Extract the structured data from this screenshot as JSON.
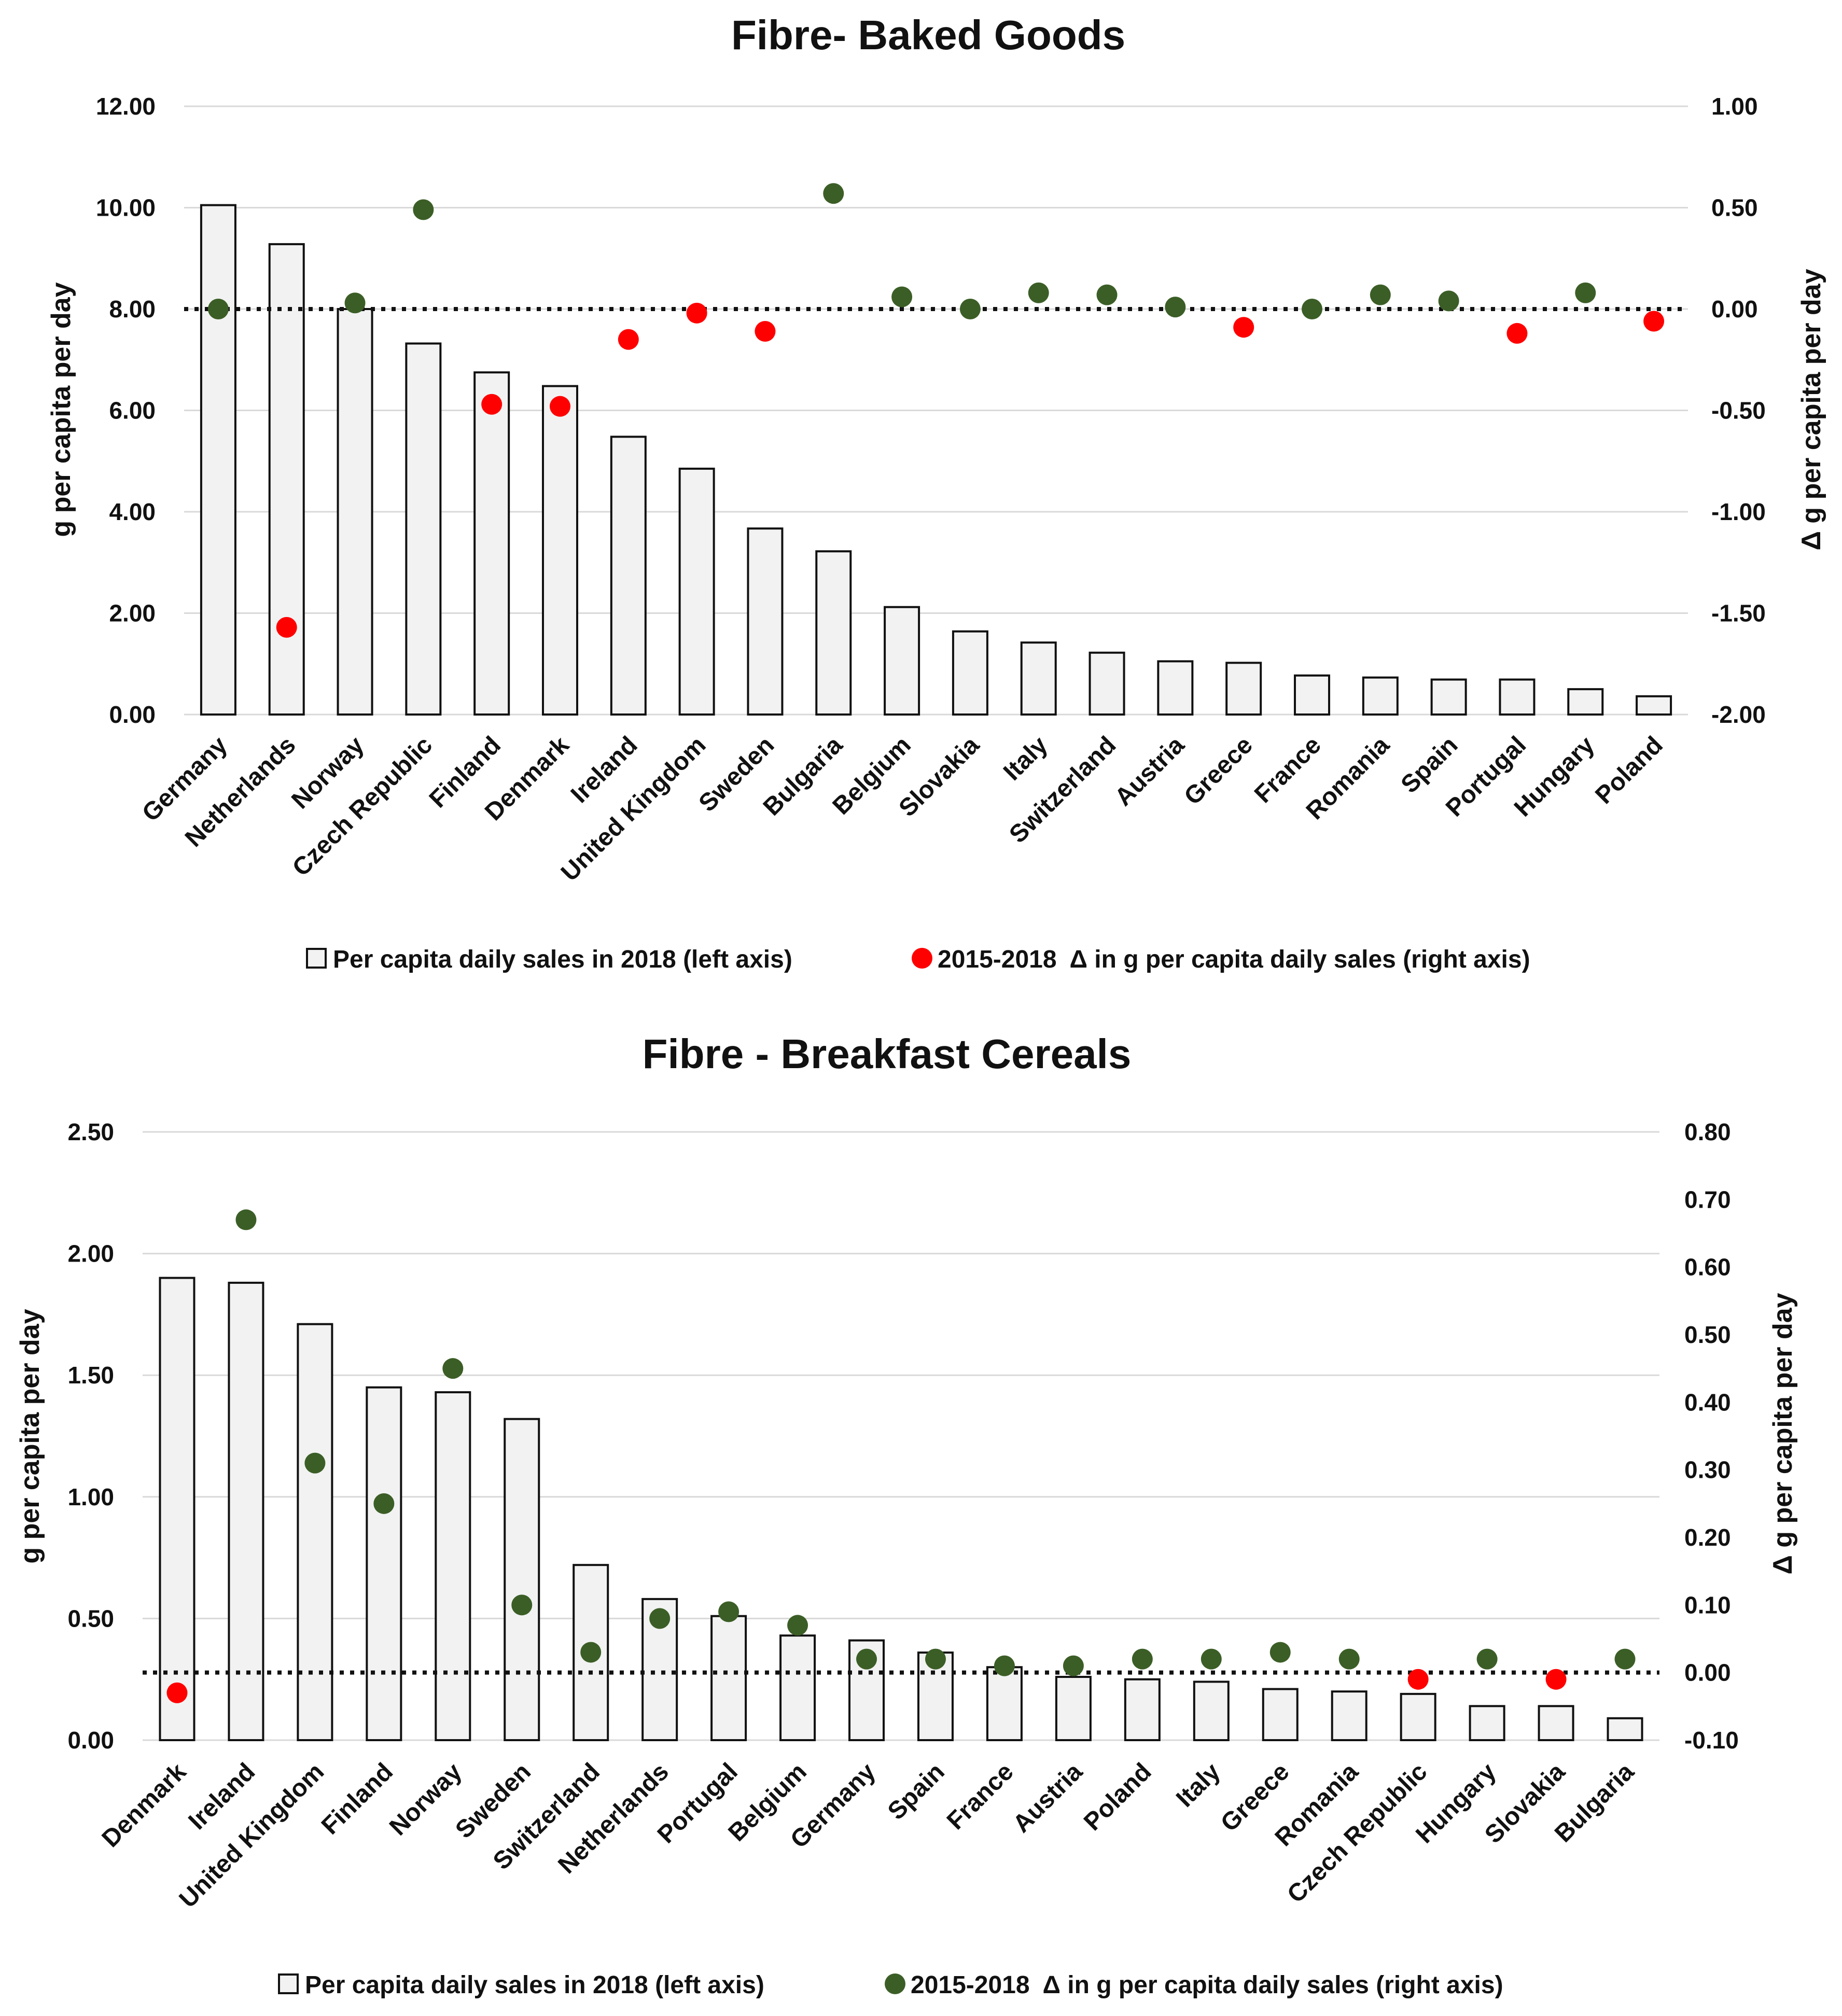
{
  "colors": {
    "increase": "#3b5e26",
    "decrease": "#ff0000",
    "bar_fill": "#f2f2f2",
    "bar_stroke": "#111111",
    "grid": "#d9d9d9"
  },
  "chart_data": [
    {
      "type": "bar",
      "title": "Fibre- Baked Goods",
      "ylabel": "g per capita per day",
      "y2label": "Δ g per capita per day",
      "ylim": [
        0,
        12
      ],
      "y2lim": [
        -2,
        1
      ],
      "yticks": [
        "0.00",
        "2.00",
        "4.00",
        "6.00",
        "8.00",
        "10.00",
        "12.00"
      ],
      "y2ticks": [
        "-2.00",
        "-1.50",
        "-1.00",
        "-0.50",
        "0.00",
        "0.50",
        "1.00"
      ],
      "grid": true,
      "legend_position": "bottom",
      "categories": [
        "Germany",
        "Netherlands",
        "Norway",
        "Czech Republic",
        "Finland",
        "Denmark",
        "Ireland",
        "United Kingdom",
        "Sweden",
        "Bulgaria",
        "Belgium",
        "Slovakia",
        "Italy",
        "Switzerland",
        "Austria",
        "Greece",
        "France",
        "Romania",
        "Spain",
        "Portugal",
        "Hungary",
        "Poland"
      ],
      "series": [
        {
          "name": "Per capita daily sales in 2018 (left axis)",
          "axis": "left",
          "kind": "bar",
          "values": [
            10.05,
            9.28,
            8.0,
            7.32,
            6.75,
            6.48,
            5.48,
            4.85,
            3.67,
            3.22,
            2.12,
            1.64,
            1.42,
            1.22,
            1.05,
            1.02,
            0.77,
            0.73,
            0.69,
            0.69,
            0.5,
            0.36
          ]
        },
        {
          "name": "2015-2018  Δ in g per capita daily sales (right axis)",
          "axis": "right",
          "kind": "scatter",
          "values": [
            0.0,
            -1.57,
            0.03,
            0.49,
            -0.47,
            -0.48,
            -0.15,
            -0.02,
            -0.11,
            0.57,
            0.06,
            0.0,
            0.08,
            0.07,
            0.01,
            -0.09,
            0.0,
            0.07,
            0.04,
            -0.12,
            0.08,
            -0.06
          ]
        }
      ]
    },
    {
      "type": "bar",
      "title": "Fibre - Breakfast Cereals",
      "ylabel": "g per capita per day",
      "y2label": "Δ g per capita per day",
      "ylim": [
        0,
        2.5
      ],
      "y2lim": [
        -0.1,
        0.8
      ],
      "yticks": [
        "0.00",
        "0.50",
        "1.00",
        "1.50",
        "2.00",
        "2.50"
      ],
      "y2ticks": [
        "-0.10",
        "0.00",
        "0.10",
        "0.20",
        "0.30",
        "0.40",
        "0.50",
        "0.60",
        "0.70",
        "0.80"
      ],
      "grid": true,
      "legend_position": "bottom",
      "categories": [
        "Denmark",
        "Ireland",
        "United Kingdom",
        "Finland",
        "Norway",
        "Sweden",
        "Switzerland",
        "Netherlands",
        "Portugal",
        "Belgium",
        "Germany",
        "Spain",
        "France",
        "Austria",
        "Poland",
        "Italy",
        "Greece",
        "Romania",
        "Czech Republic",
        "Hungary",
        "Slovakia",
        "Bulgaria"
      ],
      "series": [
        {
          "name": "Per capita daily sales in 2018 (left axis)",
          "axis": "left",
          "kind": "bar",
          "values": [
            1.9,
            1.88,
            1.71,
            1.45,
            1.43,
            1.32,
            0.72,
            0.58,
            0.51,
            0.43,
            0.41,
            0.36,
            0.3,
            0.26,
            0.25,
            0.24,
            0.21,
            0.2,
            0.19,
            0.14,
            0.14,
            0.09
          ]
        },
        {
          "name": "2015-2018  Δ in g per capita daily sales (right axis)",
          "axis": "right",
          "kind": "scatter",
          "values": [
            -0.03,
            0.67,
            0.31,
            0.25,
            0.45,
            0.1,
            0.03,
            0.08,
            0.09,
            0.07,
            0.02,
            0.02,
            0.01,
            0.01,
            0.02,
            0.02,
            0.03,
            0.02,
            -0.01,
            0.02,
            -0.01,
            0.02
          ]
        }
      ]
    }
  ]
}
